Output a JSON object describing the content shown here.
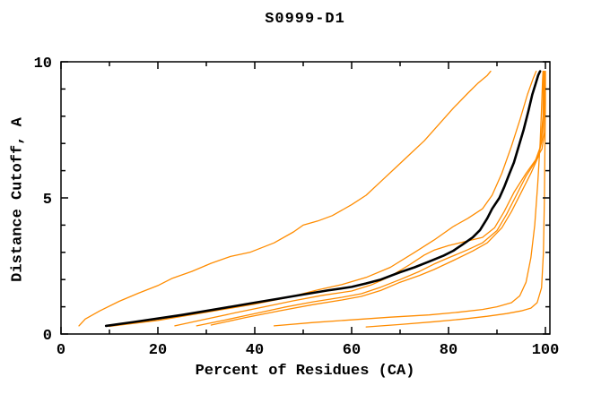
{
  "chart_data": {
    "type": "line",
    "title": "S0999-D1",
    "xlabel": "Percent of Residues (CA)",
    "ylabel": "Distance Cutoff, A",
    "xlim": [
      0,
      100
    ],
    "ylim": [
      0,
      10
    ],
    "x_major_ticks": [
      0,
      20,
      40,
      60,
      80,
      100
    ],
    "x_minor_ticks": [
      10,
      30,
      50,
      70,
      90
    ],
    "y_major_ticks": [
      0,
      5,
      10
    ],
    "y_minor_ticks": [
      1,
      2,
      3,
      4,
      6,
      7,
      8,
      9
    ],
    "grid": false,
    "legend_position": "none",
    "colors": {
      "model_line": "#ff8c00",
      "highlight_line": "#000000",
      "axis": "#000000",
      "background": "#ffffff"
    },
    "series": [
      {
        "name": "model-1",
        "color": "#ff8c00",
        "width": 1.3,
        "points": [
          [
            3.7,
            0.3
          ],
          [
            5,
            0.55
          ],
          [
            8,
            0.85
          ],
          [
            12,
            1.2
          ],
          [
            16,
            1.5
          ],
          [
            20,
            1.78
          ],
          [
            23,
            2.05
          ],
          [
            27,
            2.3
          ],
          [
            31,
            2.6
          ],
          [
            35,
            2.85
          ],
          [
            39,
            3.0
          ],
          [
            44,
            3.35
          ],
          [
            48,
            3.75
          ],
          [
            50,
            4.0
          ],
          [
            53,
            4.15
          ],
          [
            56,
            4.35
          ],
          [
            60,
            4.75
          ],
          [
            63,
            5.1
          ],
          [
            66,
            5.6
          ],
          [
            69,
            6.1
          ],
          [
            72,
            6.6
          ],
          [
            75,
            7.1
          ],
          [
            78,
            7.7
          ],
          [
            81,
            8.3
          ],
          [
            84,
            8.85
          ],
          [
            86,
            9.2
          ],
          [
            88,
            9.5
          ],
          [
            88.7,
            9.65
          ]
        ]
      },
      {
        "name": "model-2",
        "color": "#ff8c00",
        "width": 1.3,
        "points": [
          [
            10,
            0.28
          ],
          [
            20,
            0.5
          ],
          [
            30,
            0.8
          ],
          [
            40,
            1.1
          ],
          [
            47,
            1.35
          ],
          [
            53,
            1.62
          ],
          [
            58,
            1.82
          ],
          [
            63,
            2.08
          ],
          [
            68,
            2.45
          ],
          [
            73,
            3.0
          ],
          [
            77,
            3.45
          ],
          [
            81,
            3.95
          ],
          [
            84,
            4.25
          ],
          [
            87,
            4.6
          ],
          [
            89,
            5.1
          ],
          [
            91,
            5.9
          ],
          [
            93,
            6.9
          ],
          [
            94.8,
            7.9
          ],
          [
            96.3,
            8.8
          ],
          [
            97.5,
            9.4
          ],
          [
            98.1,
            9.65
          ]
        ]
      },
      {
        "name": "model-3",
        "color": "#ff8c00",
        "width": 1.3,
        "points": [
          [
            23.5,
            0.3
          ],
          [
            30,
            0.55
          ],
          [
            36,
            0.78
          ],
          [
            42,
            1.0
          ],
          [
            48,
            1.22
          ],
          [
            54,
            1.42
          ],
          [
            60,
            1.58
          ],
          [
            64,
            1.8
          ],
          [
            68,
            2.12
          ],
          [
            72,
            2.55
          ],
          [
            75,
            2.9
          ],
          [
            77,
            3.08
          ],
          [
            80,
            3.25
          ],
          [
            84,
            3.42
          ],
          [
            87,
            3.55
          ],
          [
            89.5,
            3.9
          ],
          [
            91.5,
            4.5
          ],
          [
            93.5,
            5.2
          ],
          [
            96,
            5.9
          ],
          [
            98,
            6.4
          ],
          [
            99.3,
            6.8
          ],
          [
            99.8,
            7.4
          ],
          [
            99.9,
            9.65
          ]
        ]
      },
      {
        "name": "model-4",
        "color": "#ff8c00",
        "width": 1.3,
        "points": [
          [
            28,
            0.3
          ],
          [
            34,
            0.52
          ],
          [
            40,
            0.75
          ],
          [
            46,
            0.98
          ],
          [
            52,
            1.18
          ],
          [
            58,
            1.35
          ],
          [
            62,
            1.48
          ],
          [
            66,
            1.72
          ],
          [
            70,
            2.0
          ],
          [
            74,
            2.3
          ],
          [
            77,
            2.57
          ],
          [
            80,
            2.8
          ],
          [
            84,
            3.1
          ],
          [
            87,
            3.35
          ],
          [
            90,
            3.8
          ],
          [
            92,
            4.4
          ],
          [
            94,
            5.1
          ],
          [
            96,
            5.8
          ],
          [
            97.8,
            6.3
          ],
          [
            99,
            6.9
          ],
          [
            99.5,
            8.0
          ],
          [
            99.6,
            9.65
          ]
        ]
      },
      {
        "name": "model-5",
        "color": "#ff8c00",
        "width": 1.3,
        "points": [
          [
            31,
            0.33
          ],
          [
            38,
            0.6
          ],
          [
            45,
            0.85
          ],
          [
            52,
            1.08
          ],
          [
            58,
            1.25
          ],
          [
            62,
            1.38
          ],
          [
            66,
            1.6
          ],
          [
            70,
            1.9
          ],
          [
            74,
            2.15
          ],
          [
            77,
            2.37
          ],
          [
            81,
            2.7
          ],
          [
            85,
            3.05
          ],
          [
            88,
            3.35
          ],
          [
            91,
            3.9
          ],
          [
            93,
            4.5
          ],
          [
            95,
            5.2
          ],
          [
            97,
            5.9
          ],
          [
            98.5,
            6.5
          ],
          [
            99.4,
            7.2
          ],
          [
            99.7,
            8.4
          ],
          [
            99.8,
            9.65
          ]
        ]
      },
      {
        "name": "model-6",
        "color": "#ff8c00",
        "width": 1.3,
        "points": [
          [
            44,
            0.3
          ],
          [
            52,
            0.42
          ],
          [
            60,
            0.52
          ],
          [
            68,
            0.62
          ],
          [
            76,
            0.7
          ],
          [
            82,
            0.8
          ],
          [
            87,
            0.9
          ],
          [
            90,
            1.0
          ],
          [
            93,
            1.15
          ],
          [
            94.7,
            1.4
          ],
          [
            96,
            1.9
          ],
          [
            97,
            2.8
          ],
          [
            97.8,
            4.0
          ],
          [
            98.4,
            5.5
          ],
          [
            98.9,
            7.0
          ],
          [
            99.2,
            8.3
          ],
          [
            99.4,
            9.3
          ],
          [
            99.5,
            9.65
          ]
        ]
      },
      {
        "name": "model-7",
        "color": "#ff8c00",
        "width": 1.3,
        "points": [
          [
            63,
            0.26
          ],
          [
            70,
            0.35
          ],
          [
            77,
            0.45
          ],
          [
            83,
            0.55
          ],
          [
            88,
            0.65
          ],
          [
            92,
            0.75
          ],
          [
            95,
            0.85
          ],
          [
            97,
            0.95
          ],
          [
            98.3,
            1.15
          ],
          [
            99.2,
            1.7
          ],
          [
            99.6,
            3.0
          ],
          [
            99.8,
            5.0
          ],
          [
            99.9,
            7.0
          ],
          [
            100,
            8.5
          ],
          [
            100,
            9.65
          ]
        ]
      },
      {
        "name": "highlighted-model",
        "color": "#000000",
        "width": 2.6,
        "points": [
          [
            9.3,
            0.3
          ],
          [
            15,
            0.44
          ],
          [
            20,
            0.57
          ],
          [
            25,
            0.7
          ],
          [
            30,
            0.85
          ],
          [
            35,
            1.0
          ],
          [
            40,
            1.15
          ],
          [
            45,
            1.3
          ],
          [
            50,
            1.45
          ],
          [
            55,
            1.6
          ],
          [
            60,
            1.73
          ],
          [
            63,
            1.86
          ],
          [
            66,
            2.0
          ],
          [
            70,
            2.27
          ],
          [
            73,
            2.45
          ],
          [
            76,
            2.66
          ],
          [
            79,
            2.88
          ],
          [
            81,
            3.06
          ],
          [
            83,
            3.3
          ],
          [
            85,
            3.55
          ],
          [
            86.5,
            3.82
          ],
          [
            88,
            4.25
          ],
          [
            89,
            4.6
          ],
          [
            90.5,
            5.0
          ],
          [
            91.5,
            5.4
          ],
          [
            92.6,
            5.9
          ],
          [
            93.5,
            6.3
          ],
          [
            94.5,
            6.9
          ],
          [
            95.5,
            7.5
          ],
          [
            96.5,
            8.2
          ],
          [
            97.3,
            8.8
          ],
          [
            98,
            9.2
          ],
          [
            98.5,
            9.5
          ],
          [
            98.9,
            9.65
          ]
        ]
      }
    ]
  }
}
